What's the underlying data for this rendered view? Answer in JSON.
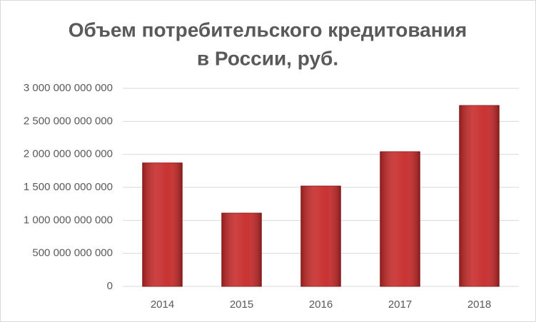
{
  "chart_data": {
    "type": "bar",
    "title": [
      "Объем потребительского кредитования",
      "в России, руб."
    ],
    "categories": [
      "2014",
      "2015",
      "2016",
      "2017",
      "2018"
    ],
    "values": [
      1870000000000,
      1110000000000,
      1520000000000,
      2040000000000,
      2740000000000
    ],
    "color": "#c62828",
    "ylim": [
      0,
      3000000000000
    ],
    "yticks": [
      0,
      {
        "value": 500000000000,
        "label": "500 000 000 000"
      },
      {
        "value": 1000000000000,
        "label": "1 000 000 000 000"
      },
      {
        "value": 1500000000000,
        "label": "1 500 000 000 000"
      },
      {
        "value": 2000000000000,
        "label": "2 000 000 000 000"
      },
      {
        "value": 2500000000000,
        "label": "2 500 000 000 000"
      },
      {
        "value": 3000000000000,
        "label": "3 000 000 000 000"
      }
    ],
    "grid": true
  }
}
